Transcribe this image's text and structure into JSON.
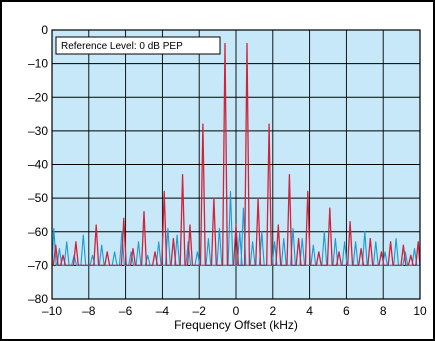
{
  "chart_data": {
    "type": "line",
    "title": "",
    "xlabel": "Frequency Offset (kHz)",
    "ylabel": "",
    "xlim": [
      -10,
      10
    ],
    "ylim": [
      -80,
      0
    ],
    "xticks": [
      -10,
      -8,
      -6,
      -4,
      -2,
      0,
      2,
      4,
      6,
      8,
      10
    ],
    "xtick_labels": [
      "–10",
      "–8",
      "–6",
      "–4",
      "–2",
      "0",
      "2",
      "4",
      "6",
      "8",
      "10"
    ],
    "yticks": [
      0,
      -10,
      -20,
      -30,
      -40,
      -50,
      -60,
      -70,
      -80
    ],
    "ytick_labels": [
      "0",
      "–10",
      "–20",
      "–30",
      "–40",
      "–50",
      "–60",
      "–70",
      "–80"
    ],
    "grid": true,
    "plot_background": "#c6e8f8",
    "floor_db": -70,
    "annotation": "Reference Level: 0 dB PEP",
    "series": [
      {
        "color": "#d0233c",
        "peaks": [
          [
            -9.8,
            -64
          ],
          [
            -9.4,
            -67
          ],
          [
            -8.7,
            -63
          ],
          [
            -7.6,
            -58
          ],
          [
            -7.0,
            -66
          ],
          [
            -6.1,
            -56
          ],
          [
            -5.6,
            -65
          ],
          [
            -5.0,
            -54
          ],
          [
            -4.4,
            -66
          ],
          [
            -3.9,
            -48
          ],
          [
            -3.4,
            -62
          ],
          [
            -2.9,
            -43
          ],
          [
            -2.5,
            -58
          ],
          [
            -1.8,
            -28
          ],
          [
            -1.2,
            -50
          ],
          [
            -0.6,
            -4
          ],
          [
            0.0,
            -58
          ],
          [
            0.6,
            -4
          ],
          [
            1.2,
            -50
          ],
          [
            1.8,
            -28
          ],
          [
            2.3,
            -58
          ],
          [
            2.9,
            -43
          ],
          [
            3.4,
            -62
          ],
          [
            3.9,
            -48
          ],
          [
            4.5,
            -66
          ],
          [
            5.1,
            -53
          ],
          [
            5.6,
            -66
          ],
          [
            6.2,
            -57
          ],
          [
            6.8,
            -65
          ],
          [
            7.3,
            -62
          ],
          [
            7.9,
            -66
          ],
          [
            8.4,
            -63
          ],
          [
            9.1,
            -64
          ],
          [
            9.5,
            -67
          ],
          [
            9.9,
            -63
          ]
        ]
      },
      {
        "color": "#1b9ad6",
        "peaks": [
          [
            -9.9,
            -59
          ],
          [
            -9.6,
            -65
          ],
          [
            -9.2,
            -63
          ],
          [
            -8.8,
            -67
          ],
          [
            -8.3,
            -61
          ],
          [
            -7.8,
            -67
          ],
          [
            -7.3,
            -64
          ],
          [
            -6.6,
            -66
          ],
          [
            -6.2,
            -60
          ],
          [
            -5.7,
            -66
          ],
          [
            -5.3,
            -63
          ],
          [
            -4.8,
            -67
          ],
          [
            -4.2,
            -63
          ],
          [
            -3.7,
            -59
          ],
          [
            -3.2,
            -61
          ],
          [
            -2.6,
            -63
          ],
          [
            -2.1,
            -66
          ],
          [
            -1.5,
            -62
          ],
          [
            -0.9,
            -59
          ],
          [
            -0.3,
            -48
          ],
          [
            0.2,
            -60
          ],
          [
            0.4,
            -53
          ],
          [
            0.9,
            -63
          ],
          [
            1.4,
            -60
          ],
          [
            2.1,
            -63
          ],
          [
            2.6,
            -62
          ],
          [
            3.1,
            -59
          ],
          [
            3.6,
            -62
          ],
          [
            4.2,
            -64
          ],
          [
            4.8,
            -60
          ],
          [
            5.4,
            -62
          ],
          [
            5.9,
            -63
          ],
          [
            6.5,
            -63
          ],
          [
            7.0,
            -60
          ],
          [
            7.6,
            -63
          ],
          [
            8.1,
            -66
          ],
          [
            8.7,
            -62
          ],
          [
            9.2,
            -66
          ],
          [
            9.7,
            -65
          ]
        ]
      }
    ]
  }
}
